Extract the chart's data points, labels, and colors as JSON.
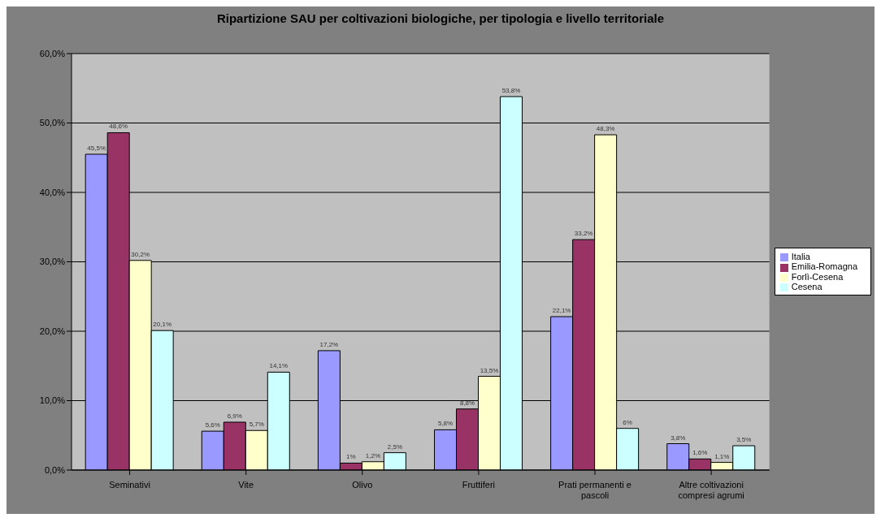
{
  "chart_data": {
    "type": "bar",
    "title": "Ripartizione SAU per coltivazioni biologiche, per tipologia e livello territoriale",
    "categories": [
      "Seminativi",
      "Vite",
      "Olivo",
      "Fruttiferi",
      "Prati permanenti e pascoli",
      "Altre coltivazioni compresi agrumi"
    ],
    "series": [
      {
        "name": "Italia",
        "color": "#9999ff",
        "values": [
          45.5,
          5.6,
          17.2,
          5.8,
          22.1,
          3.8
        ],
        "value_labels": [
          "45,5%",
          "5,6%",
          "17,2%",
          "5,8%",
          "22,1%",
          "3,8%"
        ]
      },
      {
        "name": "Emilia-Romagna",
        "color": "#993366",
        "values": [
          48.6,
          6.9,
          1,
          8.8,
          33.2,
          1.6
        ],
        "value_labels": [
          "48,6%",
          "6,9%",
          "1%",
          "8,8%",
          "33,2%",
          "1,6%"
        ]
      },
      {
        "name": "Forlì-Cesena",
        "color": "#ffffcc",
        "values": [
          30.2,
          5.7,
          1.2,
          13.5,
          48.3,
          1.1
        ],
        "value_labels": [
          "30,2%",
          "5,7%",
          "1,2%",
          "13,5%",
          "48,3%",
          "1,1%"
        ]
      },
      {
        "name": "Cesena",
        "color": "#ccffff",
        "values": [
          20.1,
          14.1,
          2.5,
          53.8,
          6,
          3.5
        ],
        "value_labels": [
          "20,1%",
          "14,1%",
          "2,5%",
          "53,8%",
          "6%",
          "3,5%"
        ]
      }
    ],
    "ylim": [
      0,
      60
    ],
    "yticks": [
      {
        "value": 0,
        "label": "0,0%"
      },
      {
        "value": 10,
        "label": "10,0%"
      },
      {
        "value": 20,
        "label": "20,0%"
      },
      {
        "value": 30,
        "label": "30,0%"
      },
      {
        "value": 40,
        "label": "40,0%"
      },
      {
        "value": 50,
        "label": "50,0%"
      },
      {
        "value": 60,
        "label": "60,0%"
      }
    ],
    "grid": "y",
    "legend": "right"
  }
}
